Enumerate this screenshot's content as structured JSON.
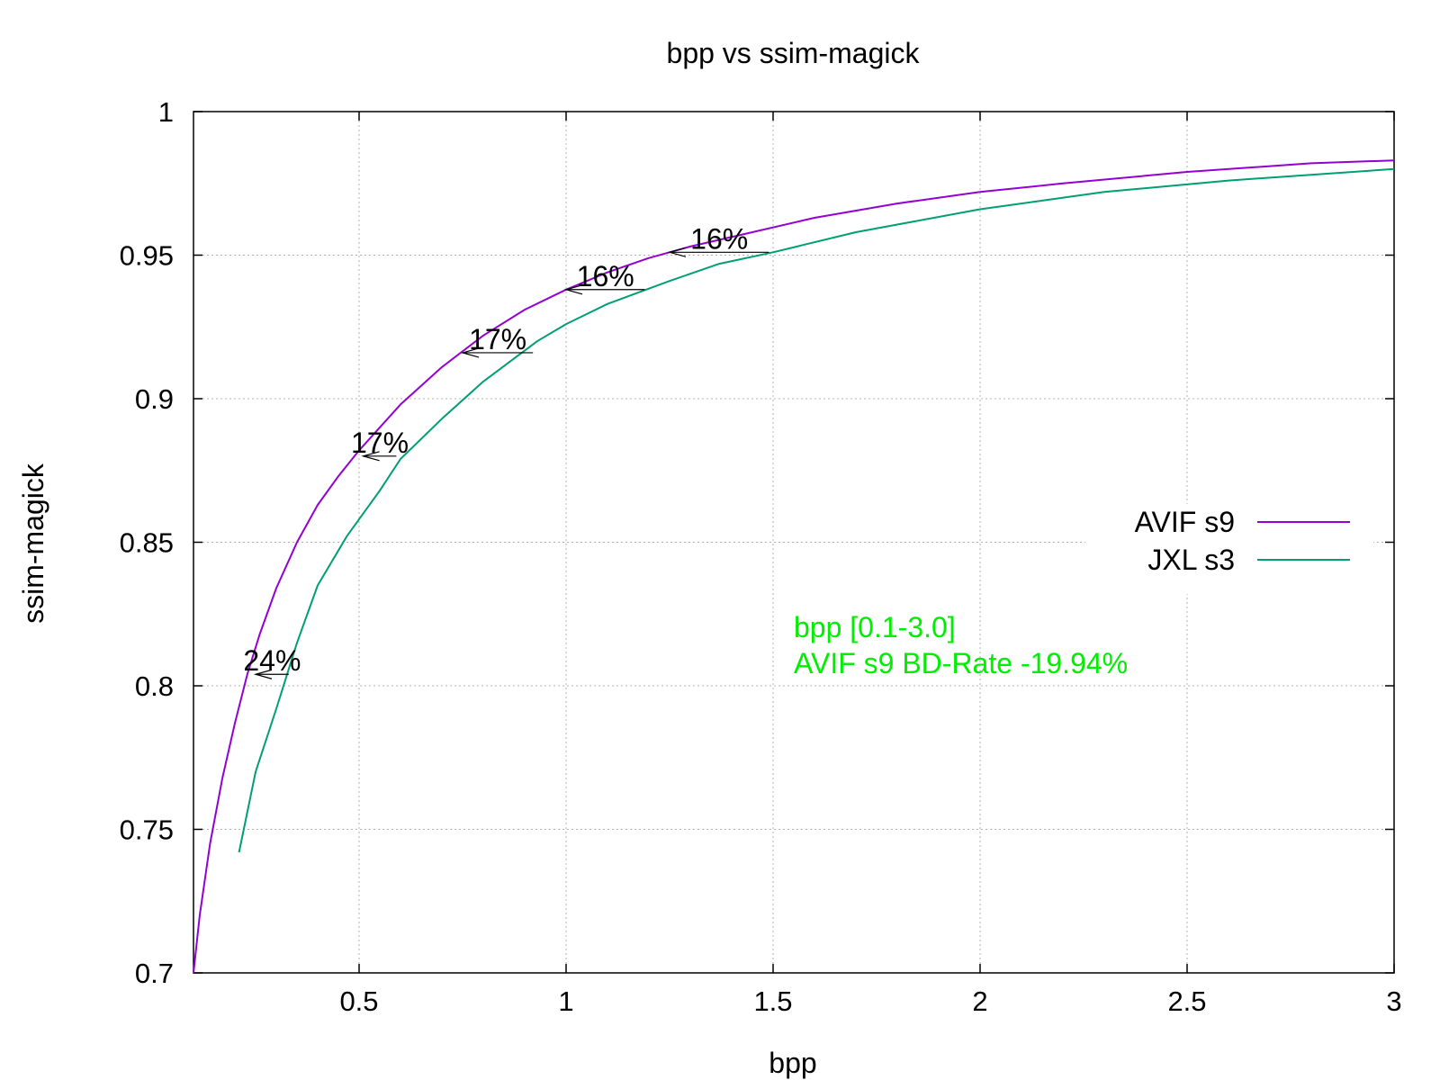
{
  "chart_data": {
    "type": "line",
    "title": "bpp vs ssim-magick",
    "xlabel": "bpp",
    "ylabel": "ssim-magick",
    "xlim": [
      0.1,
      3.0
    ],
    "ylim": [
      0.7,
      1.0
    ],
    "xticks": [
      0.5,
      1,
      1.5,
      2,
      2.5,
      3
    ],
    "xtick_labels": [
      "0.5",
      "1",
      "1.5",
      "2",
      "2.5",
      "3"
    ],
    "yticks": [
      0.7,
      0.75,
      0.8,
      0.85,
      0.9,
      0.95,
      1.0
    ],
    "ytick_labels": [
      "0.7",
      "0.75",
      "0.8",
      "0.85",
      "0.9",
      "0.95",
      "1"
    ],
    "grid": true,
    "legend_position": "right, middle",
    "series": [
      {
        "name": "AVIF s9",
        "color": "#9400d3",
        "x": [
          0.1,
          0.115,
          0.14,
          0.17,
          0.2,
          0.23,
          0.26,
          0.3,
          0.35,
          0.4,
          0.45,
          0.5,
          0.55,
          0.6,
          0.7,
          0.8,
          0.9,
          1.0,
          1.1,
          1.2,
          1.3,
          1.45,
          1.6,
          1.8,
          2.0,
          2.2,
          2.5,
          2.8,
          3.0
        ],
        "y": [
          0.7,
          0.72,
          0.745,
          0.768,
          0.787,
          0.804,
          0.818,
          0.834,
          0.85,
          0.863,
          0.873,
          0.882,
          0.89,
          0.898,
          0.911,
          0.922,
          0.931,
          0.938,
          0.944,
          0.949,
          0.953,
          0.958,
          0.963,
          0.968,
          0.972,
          0.975,
          0.979,
          0.982,
          0.983
        ]
      },
      {
        "name": "JXL s3",
        "color": "#009e73",
        "x": [
          0.21,
          0.25,
          0.3,
          0.35,
          0.4,
          0.47,
          0.55,
          0.6,
          0.7,
          0.8,
          0.93,
          1.0,
          1.1,
          1.25,
          1.37,
          1.5,
          1.7,
          2.0,
          2.3,
          2.6,
          3.0
        ],
        "y": [
          0.742,
          0.77,
          0.792,
          0.815,
          0.835,
          0.852,
          0.868,
          0.879,
          0.893,
          0.906,
          0.92,
          0.926,
          0.933,
          0.941,
          0.947,
          0.951,
          0.958,
          0.966,
          0.972,
          0.976,
          0.98
        ]
      }
    ],
    "annotations": [
      {
        "text": "24%",
        "x_from": 0.33,
        "x_to": 0.25,
        "y": 0.804
      },
      {
        "text": "17%",
        "x_from": 0.59,
        "x_to": 0.51,
        "y": 0.88
      },
      {
        "text": "17%",
        "x_from": 0.92,
        "x_to": 0.75,
        "y": 0.916
      },
      {
        "text": "16%",
        "x_from": 1.19,
        "x_to": 1.0,
        "y": 0.938
      },
      {
        "text": "16%",
        "x_from": 1.49,
        "x_to": 1.25,
        "y": 0.951
      }
    ]
  },
  "bd_rate": {
    "range_label": "bpp [0.1-3.0]",
    "result_label": "AVIF s9 BD-Rate -19.94%",
    "color": "#00ee00"
  }
}
